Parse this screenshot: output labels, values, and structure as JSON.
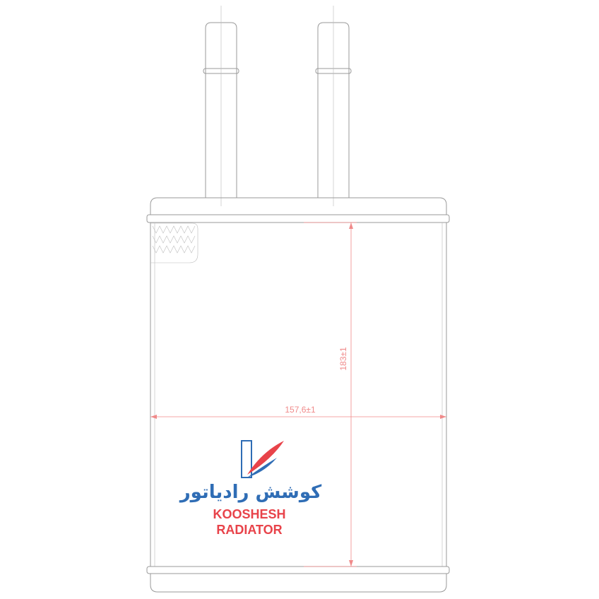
{
  "dimensions": {
    "height": "183±1",
    "width": "157,6±1"
  },
  "logo": {
    "persian": "کوشش رادیاتور",
    "line1": "KOOSHESH",
    "line2": "RADIATOR"
  }
}
